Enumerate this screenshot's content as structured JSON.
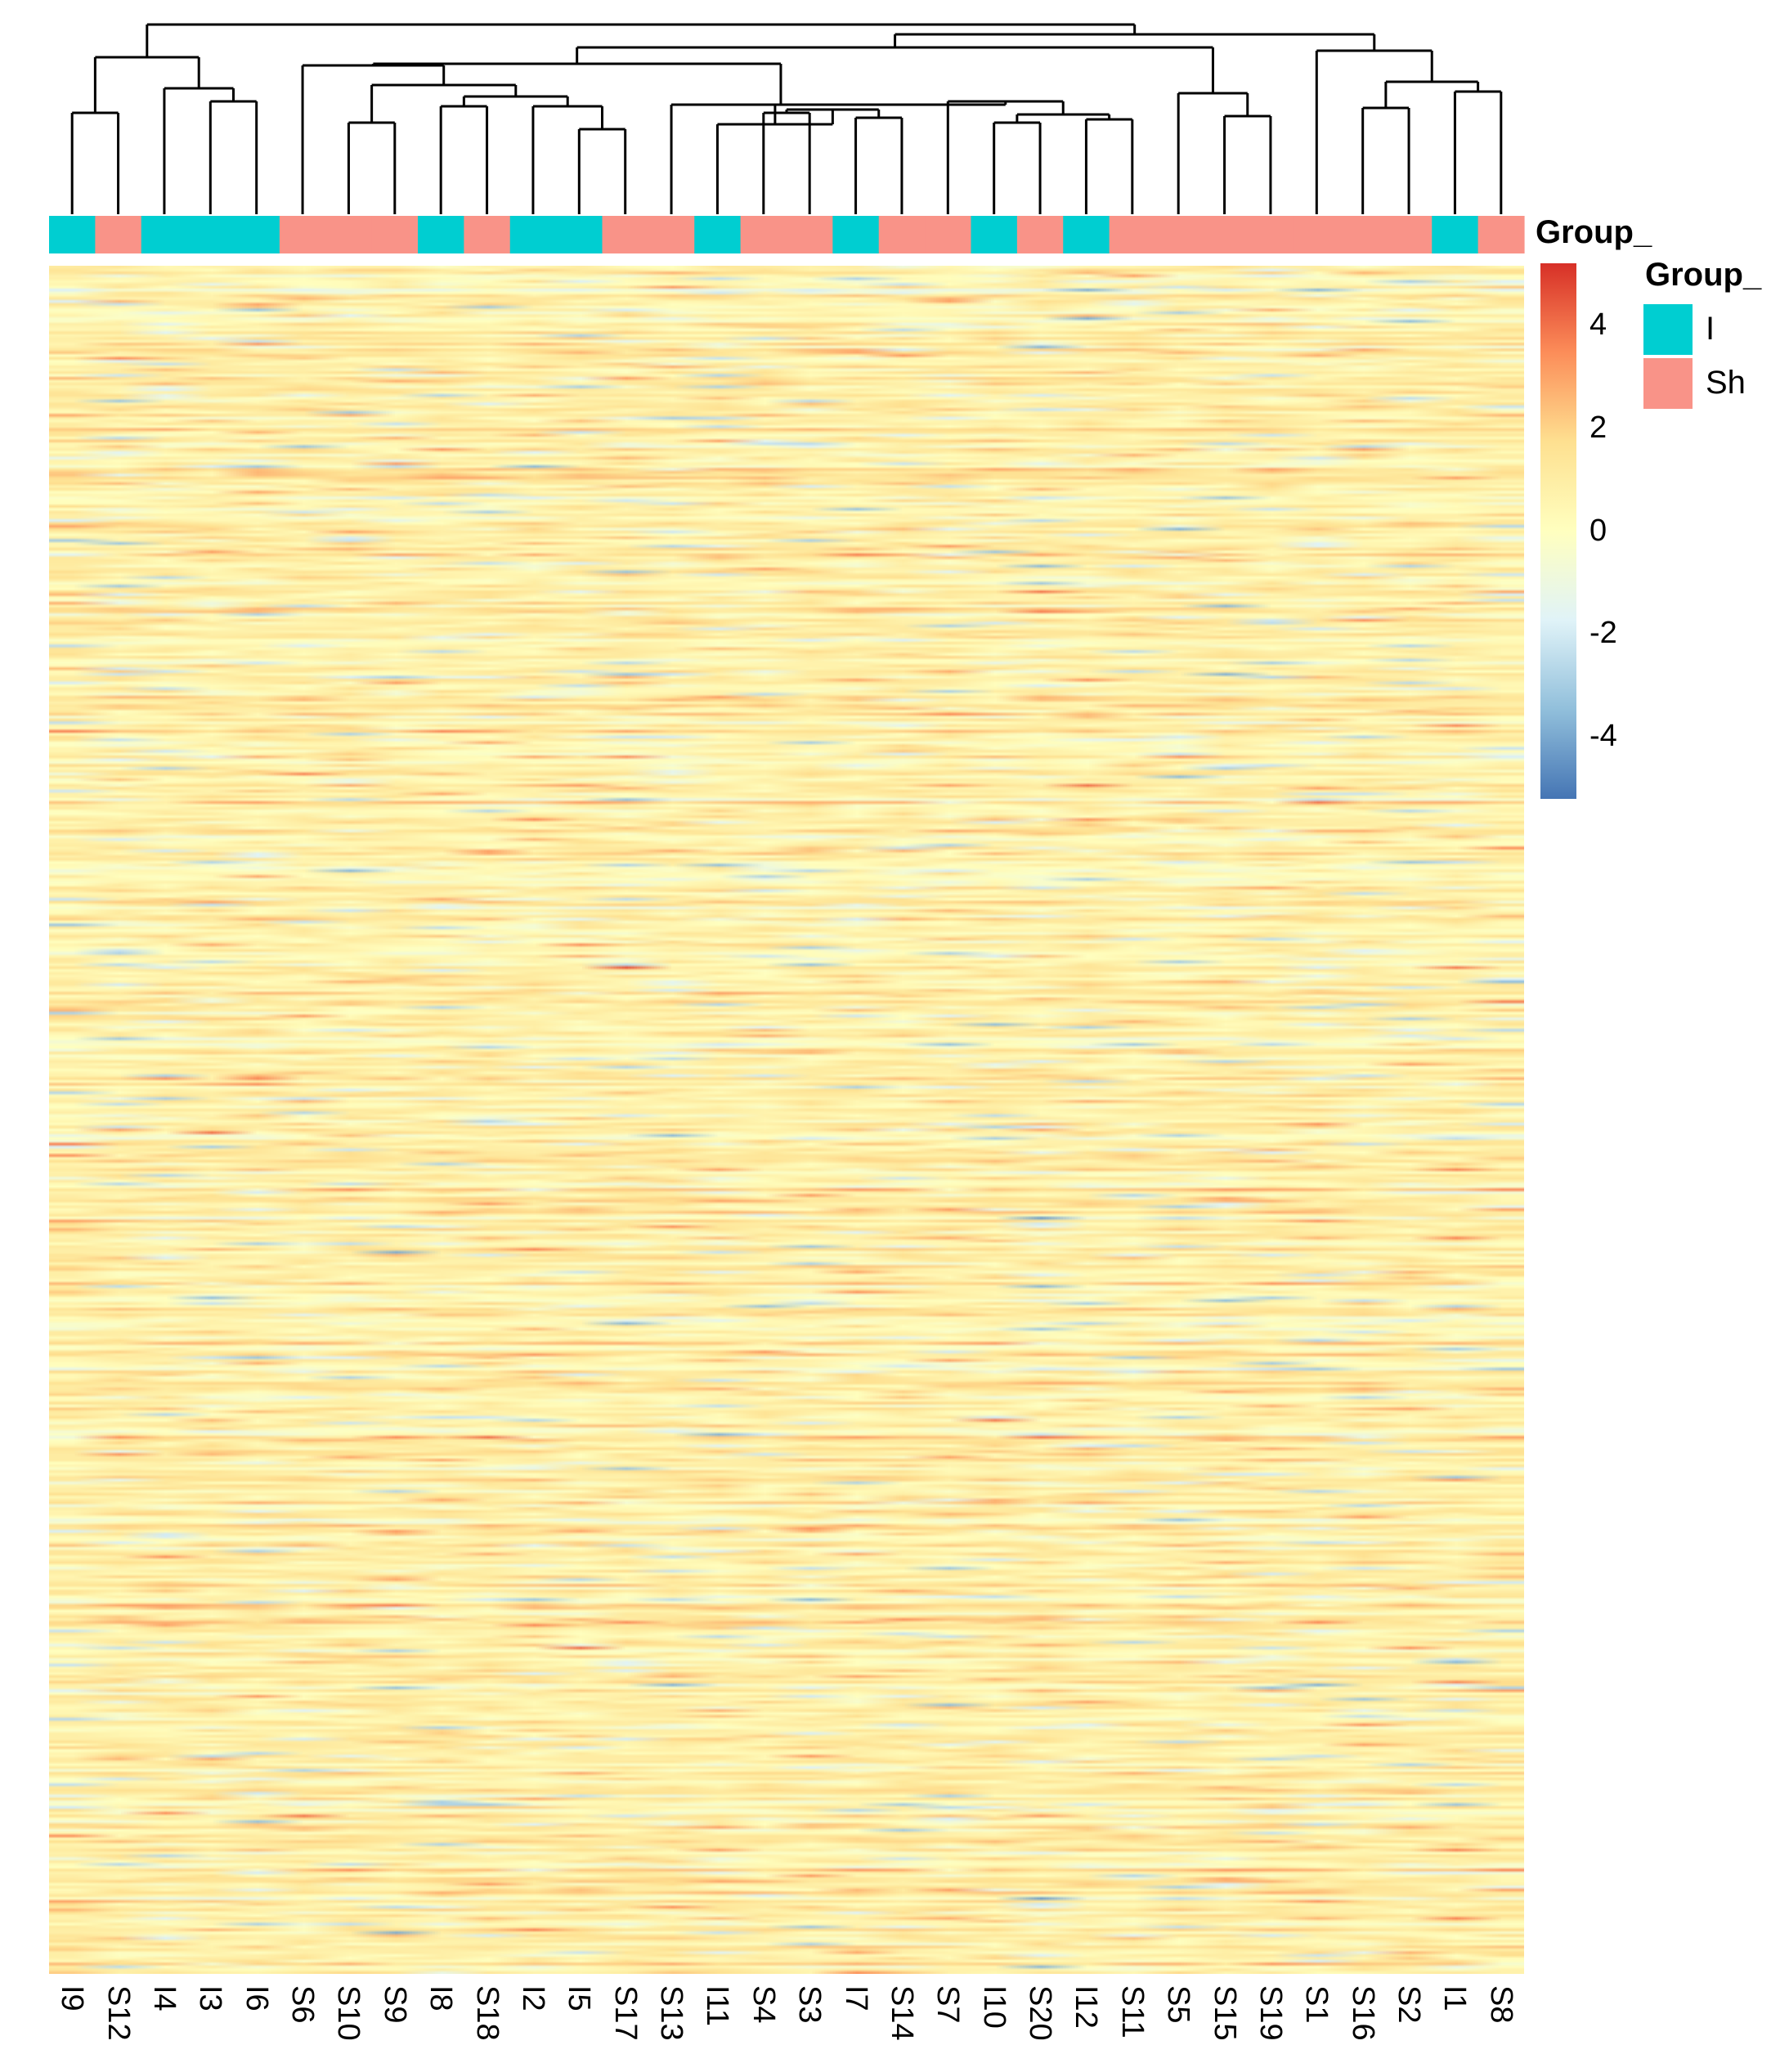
{
  "chart_data": {
    "type": "heatmap",
    "title": "",
    "annotation_label": "Group_",
    "columns": [
      "I9",
      "S12",
      "I4",
      "I3",
      "I6",
      "S6",
      "S10",
      "S9",
      "I8",
      "S18",
      "I2",
      "I5",
      "S17",
      "S13",
      "I11",
      "S4",
      "S3",
      "I7",
      "S14",
      "S7",
      "I10",
      "S20",
      "I12",
      "S11",
      "S5",
      "S15",
      "S19",
      "S1",
      "S16",
      "S2",
      "I1",
      "S8"
    ],
    "column_groups": [
      "I",
      "Sh",
      "I",
      "I",
      "I",
      "Sh",
      "Sh",
      "Sh",
      "I",
      "Sh",
      "I",
      "I",
      "Sh",
      "Sh",
      "I",
      "Sh",
      "Sh",
      "I",
      "Sh",
      "Sh",
      "I",
      "Sh",
      "I",
      "Sh",
      "Sh",
      "Sh",
      "Sh",
      "Sh",
      "Sh",
      "Sh",
      "I",
      "Sh"
    ],
    "row_count_approx": 600,
    "row_labels_shown": false,
    "column_dendrogram": true,
    "colorbar": {
      "ticks": [
        4,
        2,
        0,
        -2,
        -4
      ],
      "tick_labels": [
        "4",
        "2",
        "0",
        "-2",
        "-4"
      ],
      "range": [
        -5.2,
        5.2
      ],
      "colors": [
        "#4575b4",
        "#91bfdb",
        "#e0f3f8",
        "#ffffbf",
        "#fee090",
        "#fc8d59",
        "#d73027"
      ]
    },
    "legend": {
      "title": "Group_",
      "items": [
        {
          "label": "I",
          "color": "#00ced1"
        },
        {
          "label": "Sh",
          "color": "#f99388"
        }
      ],
      "placement": "right"
    }
  }
}
